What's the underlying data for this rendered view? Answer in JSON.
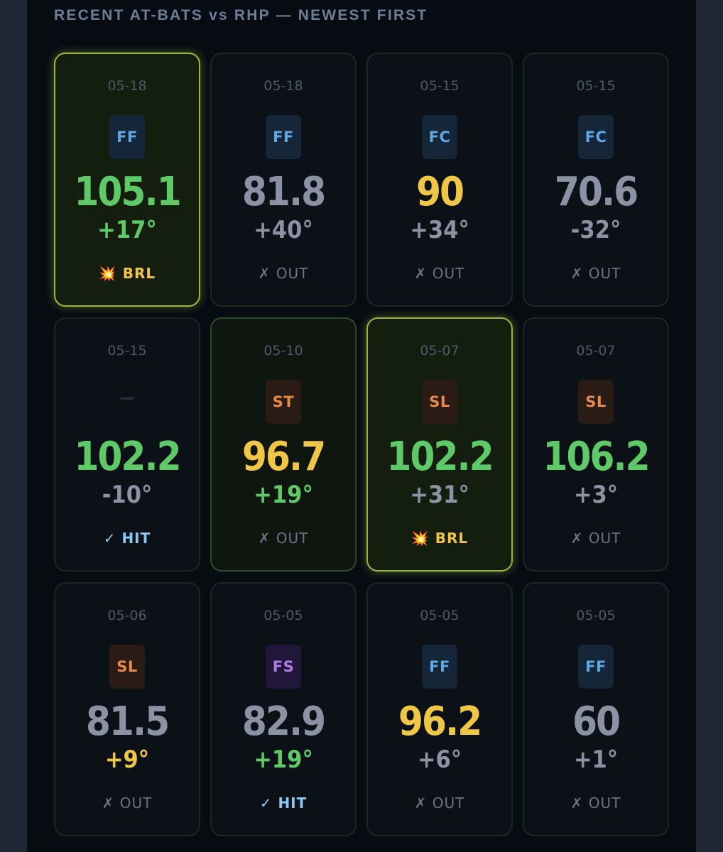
{
  "header": {
    "title": "RECENT AT-BATS vs RHP — NEWEST FIRST"
  },
  "colors": {
    "green": "#5ec967",
    "yellow": "#f0c646",
    "gray": "#8a92a4",
    "barrel_glow": "#9ab838"
  },
  "at_bats": [
    {
      "date": "05-18",
      "pitch": "FF",
      "ev": "105.1",
      "la": "+17°",
      "result": "💥 BRL"
    },
    {
      "date": "05-18",
      "pitch": "FF",
      "ev": "81.8",
      "la": "+40°",
      "result": "✗ OUT"
    },
    {
      "date": "05-15",
      "pitch": "FC",
      "ev": "90",
      "la": "+34°",
      "result": "✗ OUT"
    },
    {
      "date": "05-15",
      "pitch": "FC",
      "ev": "70.6",
      "la": "-32°",
      "result": "✗ OUT"
    },
    {
      "date": "05-15",
      "pitch": "",
      "ev": "102.2",
      "la": "-10°",
      "result": "✓ HIT"
    },
    {
      "date": "05-10",
      "pitch": "ST",
      "ev": "96.7",
      "la": "+19°",
      "result": "✗ OUT"
    },
    {
      "date": "05-07",
      "pitch": "SL",
      "ev": "102.2",
      "la": "+31°",
      "result": "💥 BRL"
    },
    {
      "date": "05-07",
      "pitch": "SL",
      "ev": "106.2",
      "la": "+3°",
      "result": "✗ OUT"
    },
    {
      "date": "05-06",
      "pitch": "SL",
      "ev": "81.5",
      "la": "+9°",
      "result": "✗ OUT"
    },
    {
      "date": "05-05",
      "pitch": "FS",
      "ev": "82.9",
      "la": "+19°",
      "result": "✓ HIT"
    },
    {
      "date": "05-05",
      "pitch": "FF",
      "ev": "96.2",
      "la": "+6°",
      "result": "✗ OUT"
    },
    {
      "date": "05-05",
      "pitch": "FF",
      "ev": "60",
      "la": "+1°",
      "result": "✗ OUT"
    }
  ]
}
